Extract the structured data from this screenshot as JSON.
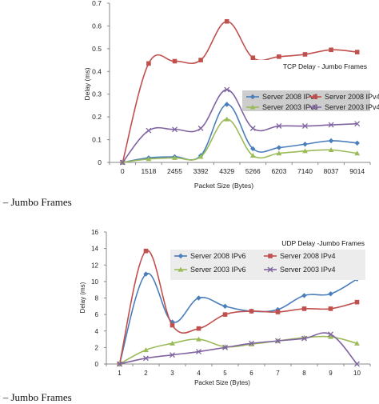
{
  "captions": {
    "top": "y – Jumbo Frames",
    "bottom": "y – Jumbo Frames"
  },
  "chart_data": [
    {
      "type": "line",
      "title": "TCP Delay - Jumbo Frames",
      "xlabel": "Packet Size (Bytes)",
      "ylabel": "Delay (ms)",
      "categories": [
        "0",
        "1518",
        "2455",
        "3392",
        "4329",
        "5266",
        "6203",
        "7140",
        "8037",
        "9014"
      ],
      "ylim": [
        0,
        0.7
      ],
      "yticks": [
        "0",
        "0.1",
        "0.2",
        "0.3",
        "0.4",
        "0.5",
        "0.6",
        "0.7"
      ],
      "grid": false,
      "legend_position": "right",
      "series": [
        {
          "name": "Server 2008 IPv6",
          "color": "#4a7ebb",
          "marker": "diamond",
          "values": [
            0,
            0.02,
            0.025,
            0.03,
            0.255,
            0.06,
            0.065,
            0.08,
            0.095,
            0.085
          ]
        },
        {
          "name": "Server 2008 IPv4",
          "color": "#c0504d",
          "marker": "square",
          "values": [
            0,
            0.435,
            0.445,
            0.45,
            0.62,
            0.46,
            0.465,
            0.475,
            0.495,
            0.485
          ]
        },
        {
          "name": "Server 2003 IPv6",
          "color": "#9bbb59",
          "marker": "triangle",
          "values": [
            0,
            0.015,
            0.02,
            0.025,
            0.19,
            0.03,
            0.04,
            0.05,
            0.055,
            0.04
          ]
        },
        {
          "name": "Server 2003 IPv4",
          "color": "#8064a2",
          "marker": "x",
          "values": [
            0,
            0.14,
            0.145,
            0.15,
            0.32,
            0.15,
            0.16,
            0.16,
            0.165,
            0.17
          ]
        }
      ]
    },
    {
      "type": "line",
      "title": "UDP Delay -Jumbo Frames",
      "xlabel": "Packet Size (Bytes)",
      "ylabel": "Delay (ms)",
      "categories": [
        "1",
        "2",
        "3",
        "4",
        "5",
        "6",
        "7",
        "8",
        "9",
        "10"
      ],
      "ylim": [
        0,
        16
      ],
      "yticks": [
        "0",
        "2",
        "4",
        "6",
        "8",
        "10",
        "12",
        "14",
        "16"
      ],
      "grid": false,
      "legend_position": "top-right",
      "series": [
        {
          "name": "Server 2008 IPv6",
          "color": "#4a7ebb",
          "marker": "diamond",
          "values": [
            0,
            10.9,
            5.1,
            8.0,
            7.0,
            6.4,
            6.6,
            8.3,
            8.5,
            10.3
          ]
        },
        {
          "name": "Server 2008 IPv4",
          "color": "#c0504d",
          "marker": "square",
          "values": [
            0,
            13.7,
            4.7,
            4.3,
            6.0,
            6.4,
            6.3,
            6.7,
            6.7,
            7.5
          ]
        },
        {
          "name": "Server 2003 IPv6",
          "color": "#9bbb59",
          "marker": "triangle",
          "values": [
            0,
            1.7,
            2.5,
            3.0,
            2.1,
            2.4,
            2.8,
            3.2,
            3.3,
            2.5
          ]
        },
        {
          "name": "Server 2003 IPv4",
          "color": "#8064a2",
          "marker": "x",
          "values": [
            0,
            0.7,
            1.1,
            1.5,
            2.0,
            2.5,
            2.8,
            3.1,
            3.6,
            0
          ]
        }
      ]
    }
  ]
}
